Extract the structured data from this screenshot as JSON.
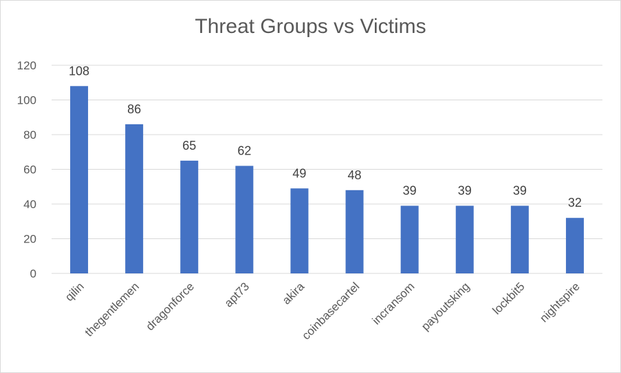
{
  "chart_data": {
    "type": "bar",
    "title": "Threat Groups vs Victims",
    "categories": [
      "qilin",
      "thegentlemen",
      "dragonforce",
      "apt73",
      "akira",
      "coinbasecartel",
      "incransom",
      "payoutsking",
      "lockbit5",
      "nightspire"
    ],
    "values": [
      108,
      86,
      65,
      62,
      49,
      48,
      39,
      39,
      39,
      32
    ],
    "ylim": [
      0,
      120
    ],
    "yticks": [
      0,
      20,
      40,
      60,
      80,
      100,
      120
    ],
    "grid": true,
    "data_labels": true,
    "bar_color": "#4472c4",
    "grid_color": "#d9d9d9"
  }
}
